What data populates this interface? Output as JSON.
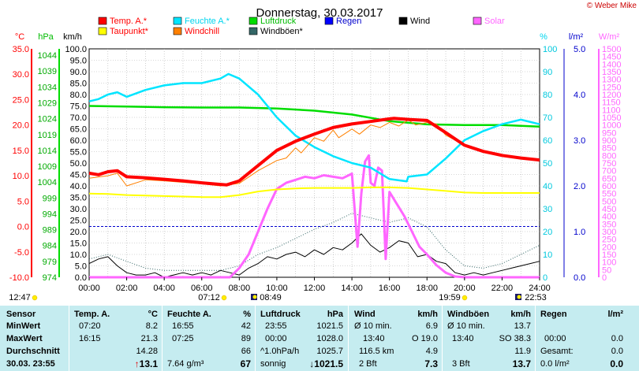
{
  "header": {
    "title": "Donnerstag, 30.03.2017",
    "copyright": "© Weber Mike"
  },
  "legend": [
    {
      "label": "Temp. A.*",
      "color": "#ff0000"
    },
    {
      "label": "Feuchte A.*",
      "color": "#00e5ff"
    },
    {
      "label": "Luftdruck",
      "color": "#00dd00"
    },
    {
      "label": "Regen",
      "color": "#0000ff"
    },
    {
      "label": "Wind",
      "color": "#000000"
    },
    {
      "label": "Solar",
      "color": "#ff66ff"
    },
    {
      "label": "Taupunkt*",
      "color": "#ffff00"
    },
    {
      "label": "Windchill",
      "color": "#ff8000"
    },
    {
      "label": "Windböen*",
      "color": "#336666"
    }
  ],
  "axes": {
    "temp_unit": "°C",
    "press_unit": "hPa",
    "wind_unit": "km/h",
    "hum_unit": "%",
    "rain_unit": "l/m²",
    "solar_unit": "W/m²",
    "temp_ticks": [
      "35.0",
      "30.0",
      "25.0",
      "20.0",
      "15.0",
      "10.0",
      "5.0",
      "0.0",
      "-5.0",
      "-10.0"
    ],
    "press_ticks": [
      "1044",
      "1039",
      "1034",
      "1029",
      "1024",
      "1019",
      "1014",
      "1009",
      "1004",
      "999",
      "994",
      "989",
      "984",
      "979",
      "974"
    ],
    "wind_ticks": [
      "100.0",
      "95.0",
      "90.0",
      "85.0",
      "80.0",
      "75.0",
      "70.0",
      "65.0",
      "60.0",
      "55.0",
      "50.0",
      "45.0",
      "40.0",
      "35.0",
      "30.0",
      "25.0",
      "20.0",
      "15.0",
      "10.0",
      "5.0",
      "0.0"
    ],
    "hum_ticks": [
      "100",
      "90",
      "80",
      "70",
      "60",
      "50",
      "40",
      "30",
      "20",
      "10",
      "0"
    ],
    "rain_ticks": [
      "5.0",
      "4.0",
      "3.0",
      "2.0",
      "1.0",
      "0.0"
    ],
    "solar_ticks": [
      "1500",
      "1450",
      "1400",
      "1350",
      "1300",
      "1250",
      "1200",
      "1150",
      "1100",
      "1050",
      "1000",
      "950",
      "900",
      "850",
      "800",
      "750",
      "700",
      "650",
      "600",
      "550",
      "500",
      "450",
      "400",
      "350",
      "300",
      "250",
      "200",
      "150",
      "100",
      "50",
      "0"
    ],
    "time_ticks": [
      "00:00",
      "02:00",
      "04:00",
      "06:00",
      "08:00",
      "10:00",
      "12:00",
      "14:00",
      "16:00",
      "18:00",
      "20:00",
      "22:00",
      "24:00"
    ]
  },
  "sun": {
    "moonrise": "12:47",
    "sunrise": "07:12",
    "moonset_a": "08:49",
    "sunset": "19:59",
    "moonset_b": "22:53"
  },
  "stats": {
    "headers": {
      "sensor": "Sensor",
      "temp": "Temp. A.",
      "temp_unit": "°C",
      "hum": "Feuchte A.",
      "hum_unit": "%",
      "press": "Luftdruck",
      "press_unit": "hPa",
      "wind": "Wind",
      "wind_unit": "km/h",
      "gust": "Windböen",
      "gust_unit": "km/h",
      "rain": "Regen",
      "rain_unit": "l/m²"
    },
    "rows": [
      {
        "label": "MinWert",
        "t_time": "07:20",
        "t_val": "8.2",
        "h_time": "16:55",
        "h_val": "42",
        "p_time": "23:55",
        "p_val": "1021.5",
        "w_label": "Ø 10 min.",
        "w_val": "6.9",
        "g_label": "Ø 10 min.",
        "g_val": "13.7",
        "r_label": "",
        "r_val": ""
      },
      {
        "label": "MaxWert",
        "t_time": "16:15",
        "t_val": "21.3",
        "h_time": "07:25",
        "h_val": "89",
        "p_time": "00:00",
        "p_val": "1028.0",
        "w_label": "13:40",
        "w_dir": "O 19.0",
        "w_val": "",
        "g_label": "13:40",
        "g_val": "SO 38.3",
        "r_label": "00:00",
        "r_val": "0.0"
      },
      {
        "label": "Durchschnitt",
        "t_time": "",
        "t_val": "14.28",
        "h_time": "",
        "h_val": "66",
        "p_time": "^1.0hPa/h",
        "p_val": "1025.7",
        "w_label": "116.5 km",
        "w_val": "4.9",
        "g_label": "",
        "g_val": "11.9",
        "r_label": "Gesamt:",
        "r_val": "0.0"
      }
    ],
    "current": {
      "datetime": "30.03. 23:55",
      "temp": "13.1",
      "temp_arrow": "↑",
      "abs_hum": "7.64 g/m³",
      "hum": "67",
      "weather": "sonnig",
      "press": "1021.5",
      "press_arrow": "↓",
      "bft": "2 Bft",
      "wind": "7.3",
      "gust_bft": "3 Bft",
      "gust": "13.7",
      "rain_rate": "0.0 l/m²",
      "rain": "0.0"
    }
  },
  "chart_data": {
    "type": "line",
    "x_label": "Uhrzeit",
    "x_range": [
      0,
      24
    ],
    "series": [
      {
        "name": "Temp. A.*",
        "axis": "temp",
        "color": "#ff0000",
        "x": [
          0,
          0.5,
          1,
          1.5,
          2,
          3,
          4,
          5,
          6,
          7,
          7.33,
          8,
          9,
          10,
          11,
          12,
          13,
          14,
          15,
          16,
          16.25,
          17,
          18,
          19,
          20,
          21,
          22,
          23,
          24
        ],
        "y": [
          10.5,
          10.2,
          10.8,
          11,
          9.8,
          9.6,
          9.3,
          9,
          8.6,
          8.3,
          8.2,
          9,
          12,
          15,
          16.8,
          18.2,
          19.5,
          20.2,
          20.7,
          21.2,
          21.3,
          21.1,
          20.9,
          18.5,
          16,
          14.8,
          14,
          13.5,
          13.1
        ]
      },
      {
        "name": "Feuchte A.*",
        "axis": "hum",
        "color": "#00e5ff",
        "x": [
          0,
          0.5,
          1,
          1.5,
          2,
          3,
          4,
          5,
          6,
          7,
          7.42,
          8,
          9,
          10,
          11,
          12,
          13,
          14,
          15,
          16,
          16.92,
          17,
          18,
          19,
          20,
          21,
          22,
          23,
          24
        ],
        "y": [
          77,
          78,
          80,
          81,
          79,
          82,
          84,
          85,
          85,
          87,
          89,
          87,
          80,
          70,
          62,
          57,
          53,
          50,
          48,
          43,
          42,
          44,
          45,
          52,
          60,
          64,
          67,
          69,
          67
        ]
      },
      {
        "name": "Luftdruck",
        "axis": "press",
        "color": "#00dd00",
        "x": [
          0,
          2,
          4,
          6,
          8,
          10,
          12,
          14,
          16,
          18,
          20,
          22,
          24
        ],
        "y": [
          1028,
          1027.8,
          1027.6,
          1027.5,
          1027.5,
          1027.2,
          1026.5,
          1025.3,
          1023.2,
          1022.2,
          1022,
          1022,
          1021.5
        ]
      },
      {
        "name": "Taupunkt*",
        "axis": "temp",
        "color": "#ffff00",
        "x": [
          0,
          1,
          2,
          3,
          4,
          5,
          6,
          7,
          8,
          9,
          10,
          11,
          12,
          13,
          14,
          15,
          16,
          17,
          18,
          19,
          20,
          21,
          22,
          23,
          24
        ],
        "y": [
          6.5,
          6.4,
          6.2,
          6.1,
          6.0,
          5.9,
          5.8,
          5.8,
          6.2,
          6.9,
          7.3,
          7.5,
          7.6,
          7.6,
          7.6,
          7.7,
          7.7,
          7.6,
          7.3,
          7.0,
          6.7,
          6.6,
          6.6,
          6.6,
          6.6
        ]
      },
      {
        "name": "Windchill",
        "axis": "temp",
        "color": "#ff8000",
        "x": [
          0,
          1,
          1.5,
          2,
          3,
          4,
          5,
          6,
          7,
          8,
          9,
          10,
          10.5,
          11,
          11.3,
          12,
          12.5,
          13,
          13.3,
          14,
          14.4,
          15,
          15.5,
          16,
          16.5,
          17,
          17.4,
          18,
          18.5,
          19,
          20,
          21,
          22,
          23,
          24
        ],
        "y": [
          9.5,
          10,
          10.5,
          8,
          9.2,
          9,
          8.7,
          8.4,
          8,
          8.5,
          11,
          13,
          13.5,
          15.5,
          14.5,
          17.5,
          16.8,
          19,
          17.5,
          19.2,
          18.2,
          20,
          19.5,
          20.5,
          19.8,
          21,
          20,
          20.5,
          20.2,
          18,
          16,
          14.8,
          14,
          13.5,
          13.1
        ]
      },
      {
        "name": "Solar",
        "axis": "solar",
        "color": "#ff66ff",
        "x": [
          0,
          7.5,
          8,
          8.5,
          9,
          9.5,
          10,
          10.5,
          11,
          11.5,
          12,
          12.5,
          13,
          13.5,
          14,
          14.3,
          14.5,
          14.7,
          14.9,
          15,
          15.2,
          15.4,
          15.6,
          15.8,
          16,
          16.3,
          16.8,
          17.2,
          17.6,
          18,
          18.5,
          19,
          19.5,
          20,
          24
        ],
        "y": [
          0,
          0,
          60,
          150,
          300,
          450,
          580,
          620,
          640,
          660,
          650,
          670,
          660,
          650,
          680,
          200,
          550,
          760,
          800,
          620,
          600,
          720,
          700,
          120,
          560,
          500,
          400,
          300,
          200,
          150,
          80,
          30,
          5,
          0,
          0
        ]
      },
      {
        "name": "Wind",
        "axis": "wind",
        "color": "#000000",
        "x": [
          0,
          0.5,
          1,
          1.5,
          2,
          2.5,
          3,
          3.5,
          4,
          4.5,
          5,
          5.5,
          6,
          6.5,
          7,
          7.5,
          8,
          8.5,
          9,
          9.5,
          10,
          10.5,
          11,
          11.5,
          12,
          12.5,
          13,
          13.5,
          14,
          14.5,
          15,
          15.5,
          16,
          16.5,
          17,
          17.5,
          18,
          18.5,
          19,
          19.5,
          20,
          20.5,
          21,
          21.5,
          22,
          22.5,
          23,
          23.5,
          24
        ],
        "y": [
          6,
          8,
          9,
          5,
          2,
          1,
          1,
          2,
          0,
          1,
          2,
          1,
          2,
          1,
          3,
          2,
          1,
          4,
          6,
          9,
          8,
          10,
          11,
          9,
          12,
          10,
          13,
          12,
          15,
          19,
          14,
          11,
          13,
          16,
          15,
          9,
          10,
          7,
          6,
          2,
          1,
          2,
          1,
          2,
          3,
          4,
          5,
          6,
          7
        ]
      },
      {
        "name": "Windböen*",
        "axis": "wind",
        "color": "#336666",
        "x": [
          0,
          1,
          2,
          3,
          4,
          5,
          6,
          7,
          8,
          9,
          10,
          11,
          12,
          13,
          14,
          15,
          16,
          17,
          18,
          19,
          20,
          21,
          22,
          23,
          24
        ],
        "y": [
          8,
          10,
          7,
          4,
          3,
          3,
          3,
          3,
          5,
          10,
          13,
          17,
          21,
          24,
          28,
          26,
          24,
          26,
          22,
          12,
          5,
          4,
          6,
          10,
          14
        ]
      }
    ],
    "axis_ranges": {
      "temp": [
        -10,
        35
      ],
      "press": [
        974,
        1046
      ],
      "wind": [
        0,
        100
      ],
      "hum": [
        0,
        100
      ],
      "rain": [
        0,
        5
      ],
      "solar": [
        0,
        1500
      ]
    },
    "reference_lines": [
      {
        "axis": "temp",
        "value": 0,
        "style": "dashed",
        "color": "#0000cc"
      }
    ]
  }
}
